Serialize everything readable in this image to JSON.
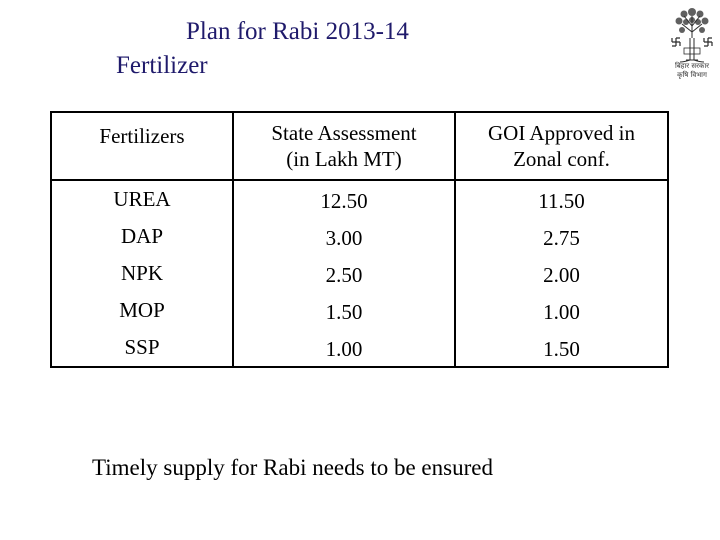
{
  "title": {
    "line1": "Plan for Rabi 2013-14",
    "line2": "Fertilizer"
  },
  "logo": {
    "icon": "icar-tree-emblem-icon",
    "text_line1": "बिहार सरकार",
    "text_line2": "कृषि विभाग",
    "color": "#2b2b2b"
  },
  "table": {
    "headers": {
      "fertilizers": "Fertilizers",
      "state_assessment_line1": "State Assessment",
      "state_assessment_line2": "(in Lakh MT)",
      "goi_line1": "GOI Approved in",
      "goi_line2": "Zonal conf."
    },
    "rows": [
      {
        "name": "UREA",
        "state": "12.50",
        "goi": "11.50"
      },
      {
        "name": "DAP",
        "state": "3.00",
        "goi": "2.75"
      },
      {
        "name": "NPK",
        "state": "2.50",
        "goi": "2.00"
      },
      {
        "name": "MOP",
        "state": "1.50",
        "goi": "1.00"
      },
      {
        "name": "SSP",
        "state": "1.00",
        "goi": "1.50"
      }
    ]
  },
  "footnote": "Timely supply for Rabi needs to be ensured",
  "colors": {
    "title": "#1f1a6b",
    "text": "#000000",
    "background": "#ffffff"
  }
}
